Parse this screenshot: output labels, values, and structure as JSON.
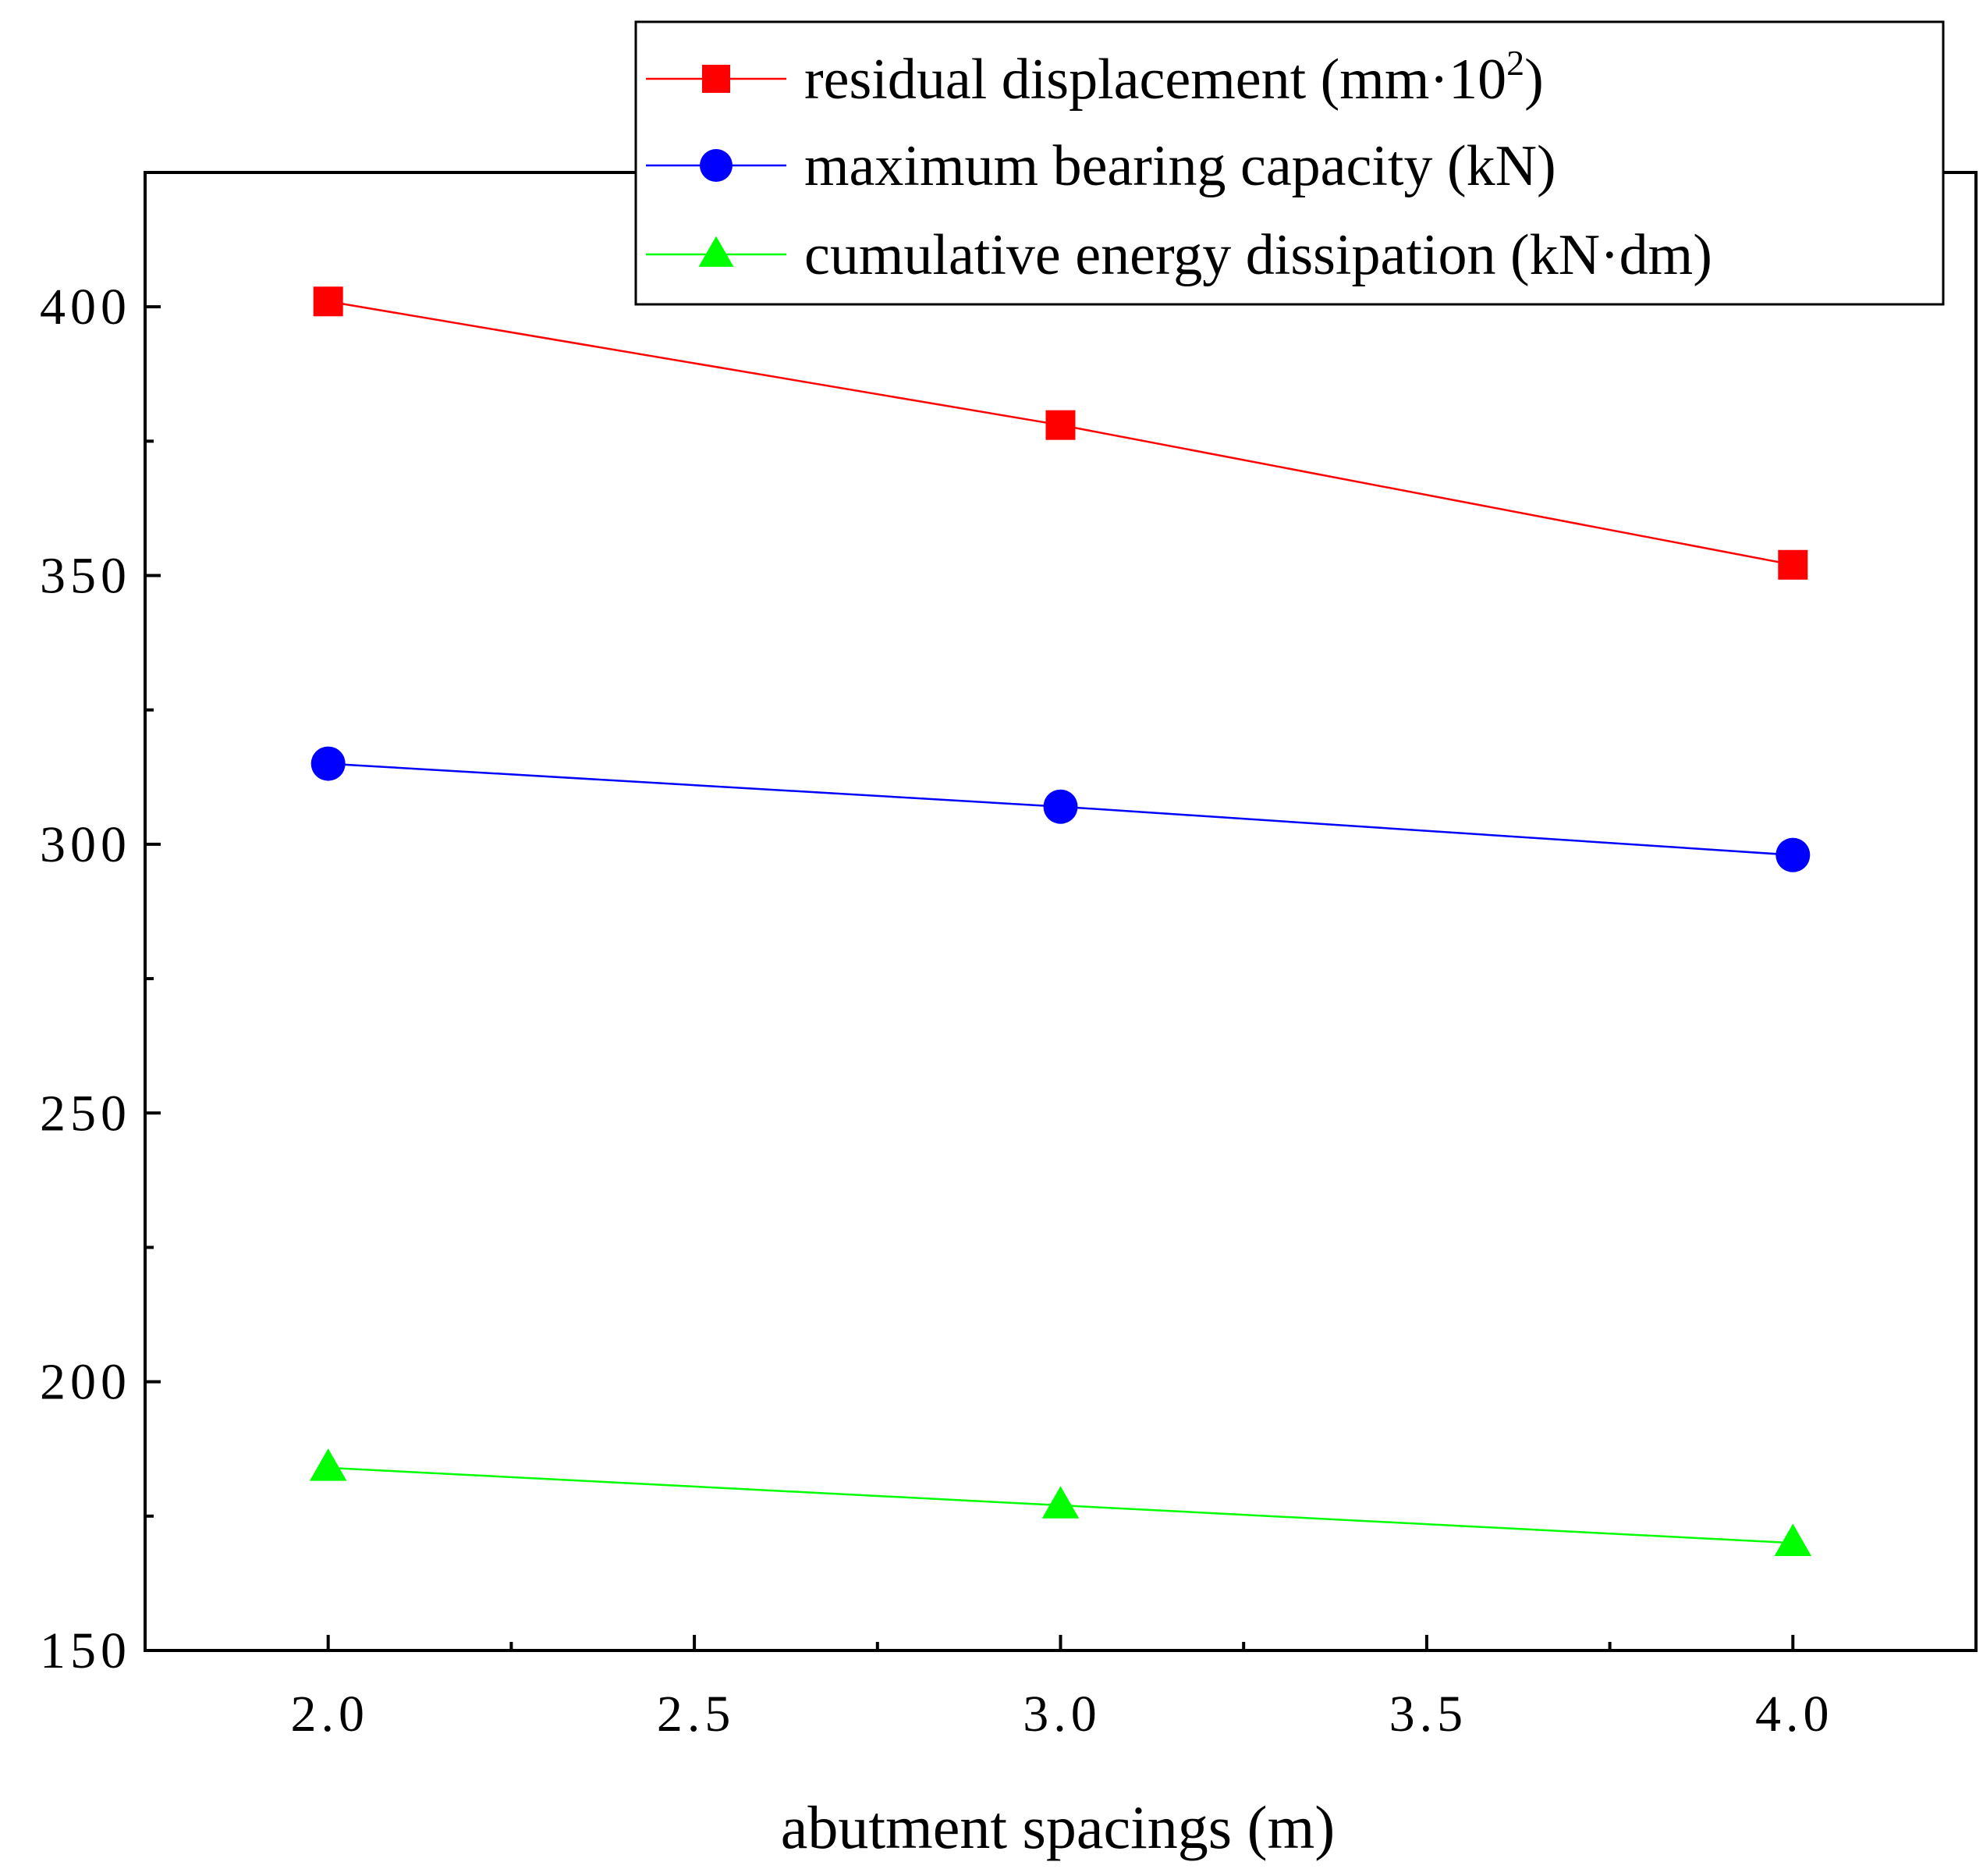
{
  "chart_data": {
    "type": "line",
    "title": "",
    "xlabel": "abutment spacings (m)",
    "ylabel": "",
    "xlim": [
      1.75,
      4.25
    ],
    "ylim": [
      150,
      425
    ],
    "x_ticks": [
      2.0,
      2.5,
      3.0,
      3.5,
      4.0
    ],
    "x_tick_labels": [
      "2.0",
      "2.5",
      "3.0",
      "3.5",
      "4.0"
    ],
    "y_ticks": [
      150,
      200,
      250,
      300,
      350,
      400
    ],
    "y_tick_labels": [
      "150",
      "200",
      "250",
      "300",
      "350",
      "400"
    ],
    "grid": false,
    "legend_position": "top-right",
    "x": [
      2.0,
      3.0,
      4.0
    ],
    "series": [
      {
        "name": "residual displacement",
        "unit_base": "mm·10",
        "unit_exp": "2",
        "color": "#ff0000",
        "marker": "square",
        "values": [
          401,
          378,
          352
        ]
      },
      {
        "name": "maximum bearing capacity",
        "unit_label": "(kN)",
        "color": "#0000ff",
        "marker": "circle",
        "values": [
          315,
          307,
          298
        ]
      },
      {
        "name": "cumulative energy dissipation",
        "unit_label": "(kN·dm)",
        "color": "#00ff00",
        "marker": "triangle",
        "values": [
          184,
          177,
          170
        ]
      }
    ]
  }
}
